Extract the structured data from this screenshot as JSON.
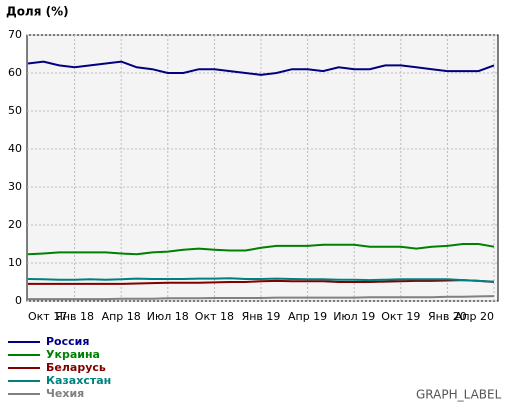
{
  "chart_data": {
    "type": "line",
    "title": "Доля (%)",
    "label": "GRAPH_LABEL",
    "categories": [
      "Окт 17",
      null,
      null,
      "Янв 18",
      null,
      null,
      "Апр 18",
      null,
      null,
      "Июл 18",
      null,
      null,
      "Окт 18",
      null,
      null,
      "Янв 19",
      null,
      null,
      "Апр 19",
      null,
      null,
      "Июл 19",
      null,
      null,
      "Окт 19",
      null,
      null,
      "Янв 20",
      null,
      null,
      "Апр 20"
    ],
    "ylim": [
      0,
      70
    ],
    "yticks": [
      0,
      10,
      20,
      30,
      40,
      50,
      60,
      70
    ],
    "grid": true,
    "series": [
      {
        "name": "Россия",
        "color": "#000080",
        "values": [
          62.5,
          63,
          62,
          61.5,
          62,
          62.5,
          63,
          61.5,
          61,
          60,
          60,
          61,
          61,
          60.5,
          60,
          59.5,
          60,
          61,
          61,
          60.5,
          61.5,
          61,
          61,
          62,
          62,
          61.5,
          61,
          60.5,
          60.5,
          60.5,
          62
        ]
      },
      {
        "name": "Украина",
        "color": "#008000",
        "values": [
          12.3,
          12.5,
          12.8,
          12.8,
          12.8,
          12.8,
          12.5,
          12.3,
          12.8,
          13,
          13.5,
          13.8,
          13.5,
          13.3,
          13.3,
          14,
          14.5,
          14.5,
          14.5,
          14.8,
          14.8,
          14.8,
          14.3,
          14.3,
          14.3,
          13.8,
          14.3,
          14.5,
          15,
          15,
          14.3
        ]
      },
      {
        "name": "Беларусь",
        "color": "#800000",
        "values": [
          4.5,
          4.5,
          4.5,
          4.5,
          4.5,
          4.5,
          4.5,
          4.6,
          4.7,
          4.8,
          4.8,
          4.8,
          4.9,
          5,
          5,
          5.2,
          5.3,
          5.2,
          5.2,
          5.2,
          5,
          5,
          5,
          5.1,
          5.2,
          5.3,
          5.3,
          5.4,
          5.5,
          5.3,
          5
        ]
      },
      {
        "name": "Казахстан",
        "color": "#008080",
        "values": [
          5.8,
          5.7,
          5.6,
          5.6,
          5.7,
          5.6,
          5.7,
          5.9,
          5.8,
          5.8,
          5.8,
          5.9,
          5.9,
          6,
          5.8,
          5.8,
          5.9,
          5.8,
          5.7,
          5.7,
          5.6,
          5.6,
          5.5,
          5.6,
          5.7,
          5.7,
          5.7,
          5.7,
          5.5,
          5.3,
          5.1
        ]
      },
      {
        "name": "Чехия",
        "color": "#808080",
        "values": [
          0.5,
          0.5,
          0.5,
          0.5,
          0.5,
          0.5,
          0.6,
          0.6,
          0.6,
          0.7,
          0.7,
          0.7,
          0.8,
          0.8,
          0.8,
          0.8,
          0.9,
          0.9,
          0.9,
          0.9,
          0.9,
          0.9,
          1,
          1,
          1,
          1,
          1,
          1.1,
          1.1,
          1.2,
          1.3
        ]
      }
    ]
  }
}
